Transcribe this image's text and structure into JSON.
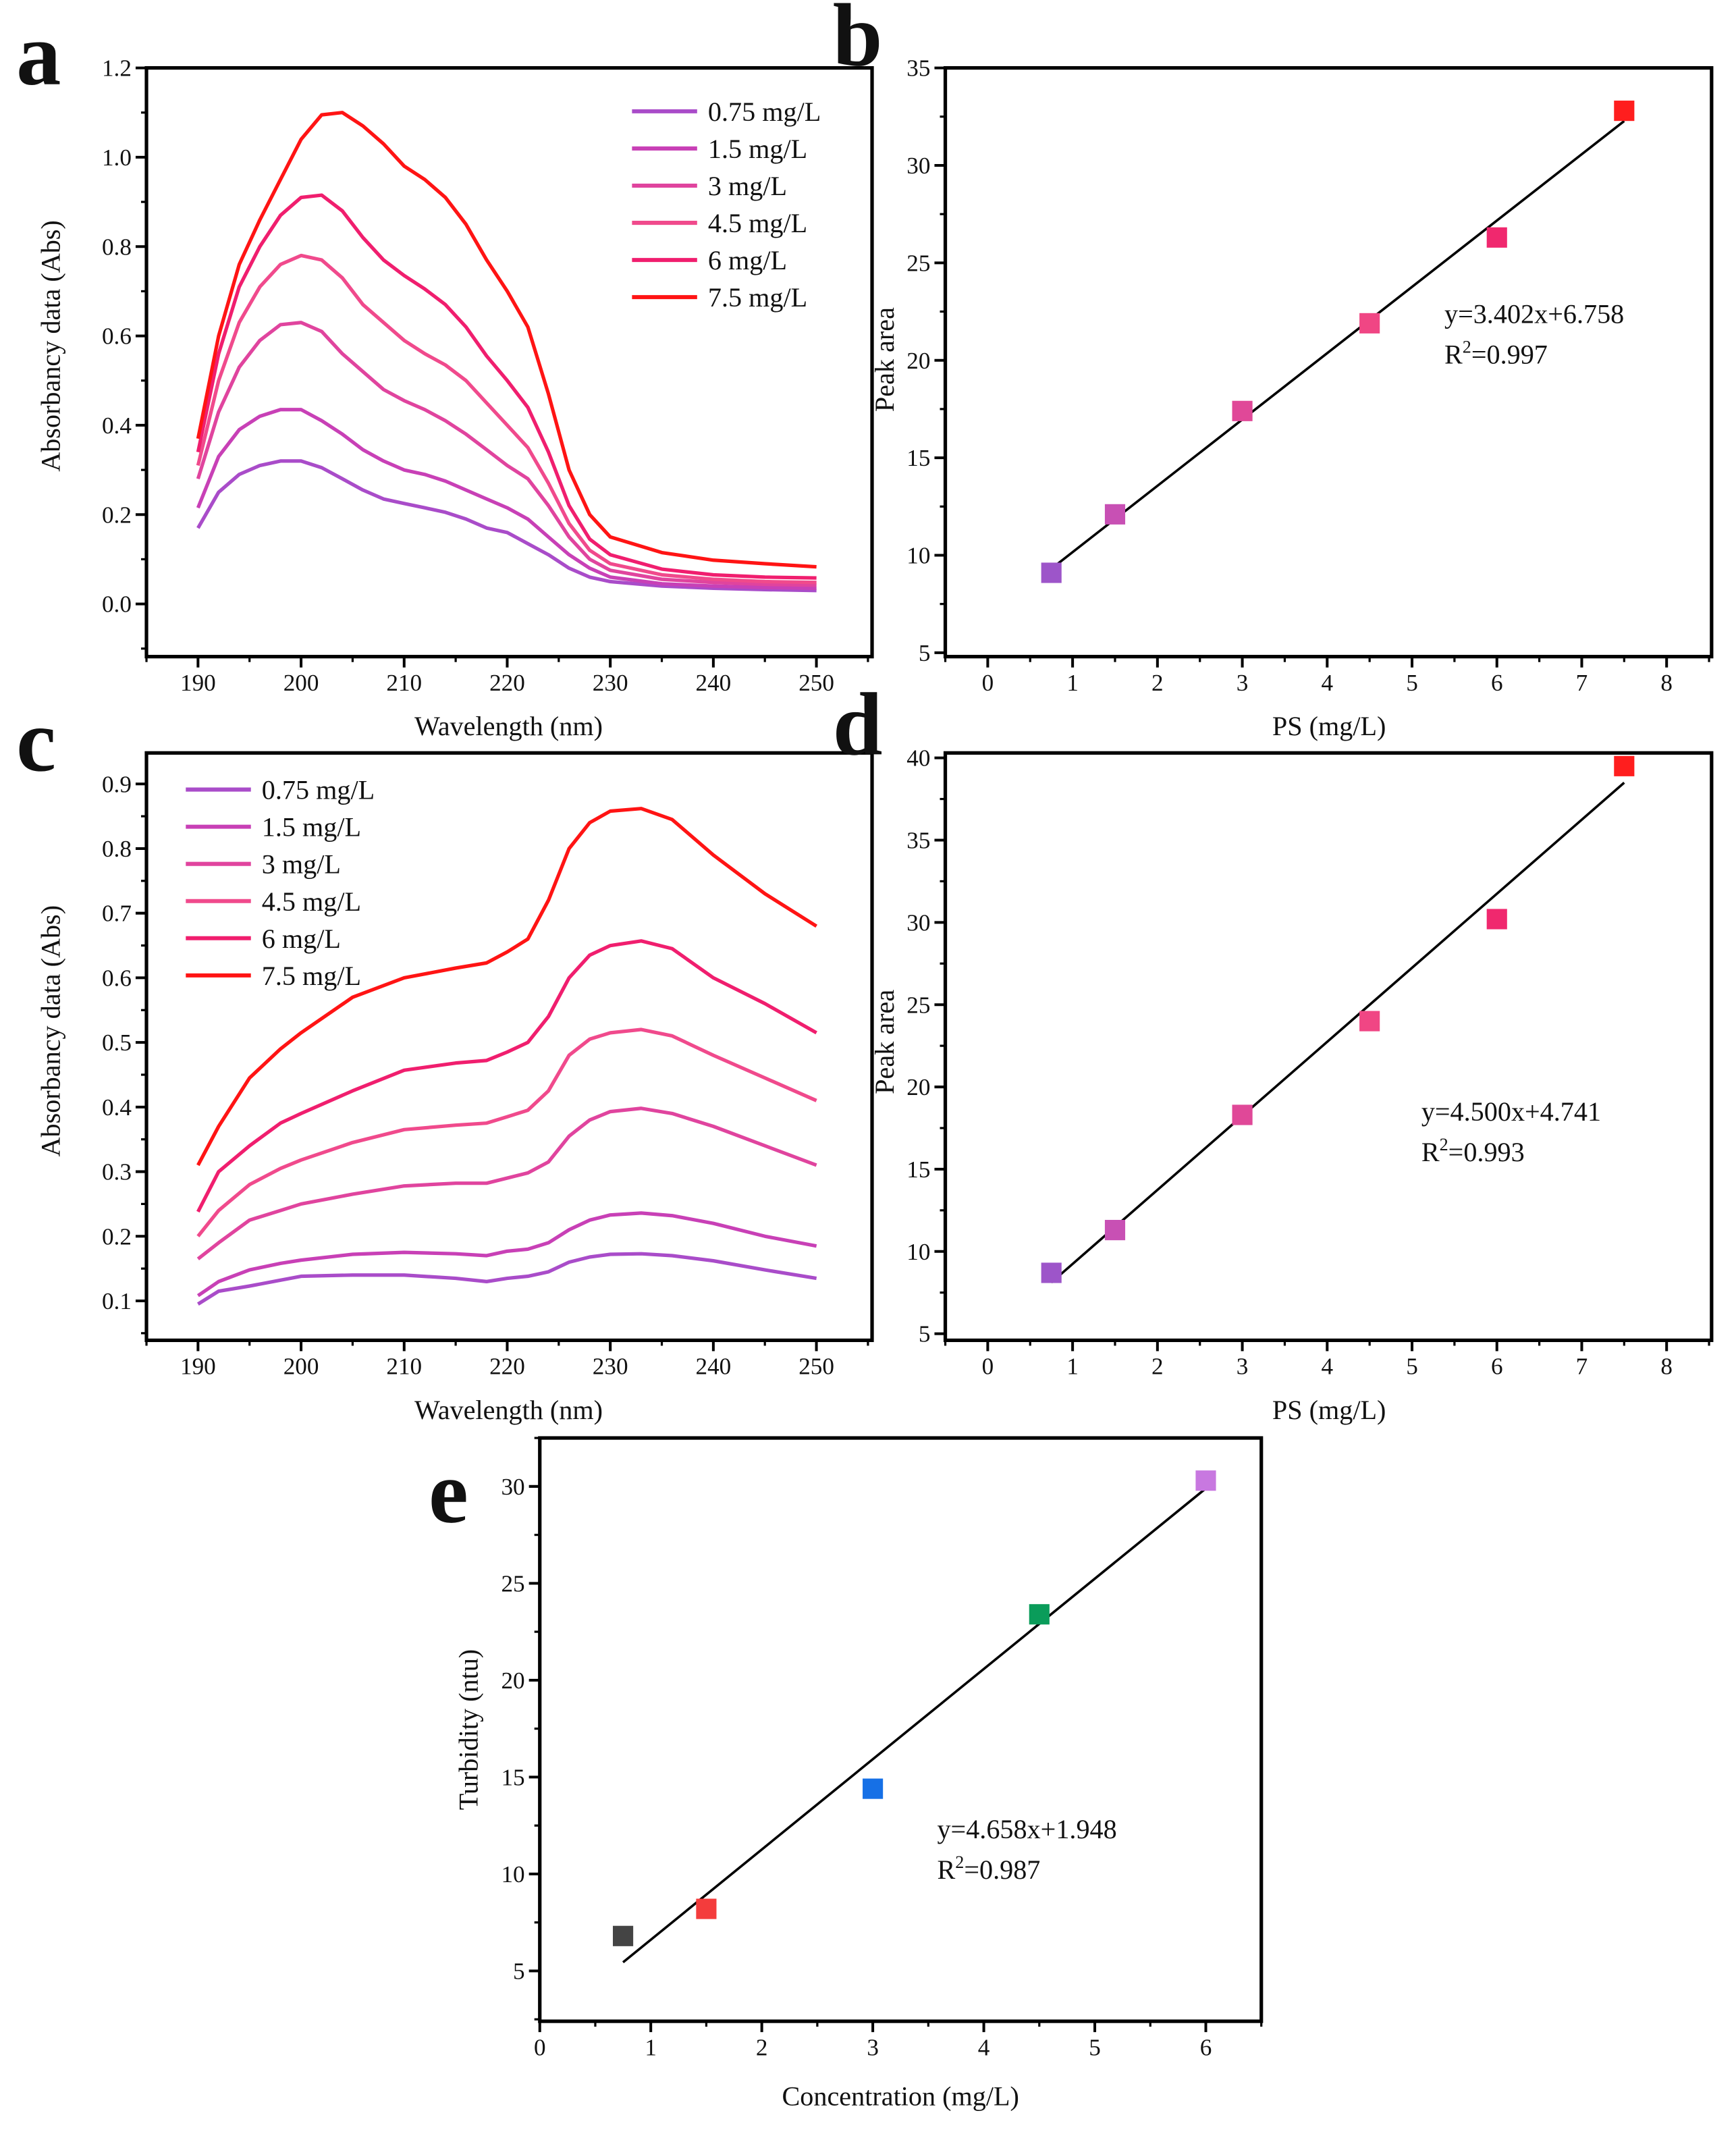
{
  "chart_data": [
    {
      "panel": "a",
      "type": "line",
      "xlabel": "Wavelength (nm)",
      "ylabel": "Absorbancy data (Abs)",
      "xlim": [
        185,
        255.4
      ],
      "ylim": [
        -0.118,
        1.2
      ],
      "xticks": [
        190,
        200,
        210,
        220,
        230,
        240,
        250
      ],
      "xtick_labels": [
        "190",
        "200",
        "210",
        "220",
        "230",
        "240",
        "250"
      ],
      "xminor": 5,
      "yticks": [
        0,
        0.2,
        0.4,
        0.6,
        0.8,
        1.0,
        1.2
      ],
      "ytick_labels": [
        "0.0",
        "0.2",
        "0.4",
        "0.6",
        "0.8",
        "1.0",
        "1.2"
      ],
      "yminor": 0.1,
      "legend_position": "top-right",
      "x": [
        190,
        192,
        194,
        196,
        198,
        200,
        202,
        204,
        206,
        208,
        210,
        212,
        214,
        216,
        218,
        220,
        222,
        224,
        226,
        228,
        230,
        235,
        240,
        245,
        250
      ],
      "series": [
        {
          "name": "0.75 mg/L",
          "color": "#a94cc9",
          "values": [
            0.17,
            0.25,
            0.29,
            0.31,
            0.32,
            0.32,
            0.305,
            0.28,
            0.255,
            0.235,
            0.225,
            0.215,
            0.205,
            0.19,
            0.17,
            0.16,
            0.135,
            0.11,
            0.08,
            0.06,
            0.05,
            0.04,
            0.035,
            0.032,
            0.03
          ]
        },
        {
          "name": "1.5 mg/L",
          "color": "#c840b6",
          "values": [
            0.215,
            0.33,
            0.39,
            0.42,
            0.435,
            0.435,
            0.41,
            0.38,
            0.345,
            0.32,
            0.3,
            0.29,
            0.275,
            0.255,
            0.235,
            0.215,
            0.19,
            0.15,
            0.11,
            0.08,
            0.06,
            0.045,
            0.04,
            0.037,
            0.035
          ]
        },
        {
          "name": "3 mg/L",
          "color": "#e0449e",
          "values": [
            0.28,
            0.43,
            0.53,
            0.59,
            0.625,
            0.63,
            0.61,
            0.56,
            0.52,
            0.48,
            0.455,
            0.435,
            0.41,
            0.38,
            0.345,
            0.31,
            0.28,
            0.22,
            0.15,
            0.1,
            0.075,
            0.055,
            0.048,
            0.044,
            0.042
          ]
        },
        {
          "name": "4.5 mg/L",
          "color": "#f04a8c",
          "values": [
            0.31,
            0.5,
            0.63,
            0.71,
            0.76,
            0.78,
            0.77,
            0.73,
            0.67,
            0.63,
            0.59,
            0.56,
            0.535,
            0.5,
            0.45,
            0.4,
            0.35,
            0.27,
            0.18,
            0.12,
            0.09,
            0.065,
            0.055,
            0.05,
            0.048
          ]
        },
        {
          "name": "6 mg/L",
          "color": "#f01e6e",
          "values": [
            0.34,
            0.56,
            0.71,
            0.8,
            0.87,
            0.91,
            0.915,
            0.88,
            0.82,
            0.77,
            0.735,
            0.705,
            0.67,
            0.62,
            0.555,
            0.5,
            0.44,
            0.34,
            0.22,
            0.145,
            0.11,
            0.078,
            0.065,
            0.06,
            0.058
          ]
        },
        {
          "name": "7.5 mg/L",
          "color": "#ff1414",
          "values": [
            0.37,
            0.6,
            0.76,
            0.86,
            0.95,
            1.04,
            1.095,
            1.1,
            1.07,
            1.03,
            0.98,
            0.95,
            0.91,
            0.85,
            0.77,
            0.7,
            0.62,
            0.47,
            0.3,
            0.2,
            0.15,
            0.115,
            0.098,
            0.09,
            0.083
          ]
        }
      ]
    },
    {
      "panel": "b",
      "type": "scatter",
      "xlabel": "PS (mg/L)",
      "ylabel": "Peak area",
      "xlim": [
        -0.5,
        8.53
      ],
      "ylim": [
        4.8,
        35
      ],
      "xticks": [
        0,
        1,
        2,
        3,
        4,
        5,
        6,
        7,
        8
      ],
      "xtick_labels": [
        "0",
        "1",
        "2",
        "3",
        "4",
        "5",
        "6",
        "7",
        "8"
      ],
      "xminor": 0.5,
      "yticks": [
        5,
        10,
        15,
        20,
        25,
        30,
        35
      ],
      "ytick_labels": [
        "5",
        "10",
        "15",
        "20",
        "25",
        "30",
        "35"
      ],
      "yminor": 2.5,
      "points": [
        {
          "x": 0.75,
          "y": 9.1,
          "color": "#9d55c9"
        },
        {
          "x": 1.5,
          "y": 12.1,
          "color": "#c850b4"
        },
        {
          "x": 3,
          "y": 17.4,
          "color": "#e04898"
        },
        {
          "x": 4.5,
          "y": 21.9,
          "color": "#f04684"
        },
        {
          "x": 6,
          "y": 26.3,
          "color": "#f0286e"
        },
        {
          "x": 7.5,
          "y": 32.8,
          "color": "#ff1e1e"
        }
      ],
      "fit": {
        "slope": 3.402,
        "intercept": 6.758,
        "x_range": [
          0.75,
          7.5
        ],
        "equation": "y=3.402x+6.758",
        "r2_label": "R",
        "r2_sup": "2",
        "r2_value": "=0.997"
      }
    },
    {
      "panel": "c",
      "type": "line",
      "xlabel": "Wavelength (nm)",
      "ylabel": "Absorbancy data (Abs)",
      "xlim": [
        185,
        255.4
      ],
      "ylim": [
        0.039,
        0.948
      ],
      "xticks": [
        190,
        200,
        210,
        220,
        230,
        240,
        250
      ],
      "xtick_labels": [
        "190",
        "200",
        "210",
        "220",
        "230",
        "240",
        "250"
      ],
      "xminor": 5,
      "yticks": [
        0.1,
        0.2,
        0.3,
        0.4,
        0.5,
        0.6,
        0.7,
        0.8,
        0.9
      ],
      "ytick_labels": [
        "0.1",
        "0.2",
        "0.3",
        "0.4",
        "0.5",
        "0.6",
        "0.7",
        "0.8",
        "0.9"
      ],
      "yminor": 0.05,
      "legend_position": "top-left",
      "x": [
        190,
        192,
        195,
        198,
        200,
        205,
        210,
        215,
        218,
        220,
        222,
        224,
        226,
        228,
        230,
        233,
        236,
        240,
        245,
        250
      ],
      "series": [
        {
          "name": "0.75 mg/L",
          "color": "#a94cc9",
          "values": [
            0.095,
            0.115,
            0.123,
            0.132,
            0.138,
            0.14,
            0.14,
            0.135,
            0.13,
            0.135,
            0.138,
            0.145,
            0.16,
            0.168,
            0.172,
            0.173,
            0.17,
            0.162,
            0.148,
            0.135
          ]
        },
        {
          "name": "1.5 mg/L",
          "color": "#c840b6",
          "values": [
            0.108,
            0.13,
            0.148,
            0.158,
            0.163,
            0.172,
            0.175,
            0.173,
            0.17,
            0.177,
            0.18,
            0.19,
            0.21,
            0.225,
            0.233,
            0.236,
            0.232,
            0.22,
            0.2,
            0.185
          ]
        },
        {
          "name": "3 mg/L",
          "color": "#e0449e",
          "values": [
            0.165,
            0.19,
            0.225,
            0.24,
            0.25,
            0.265,
            0.278,
            0.282,
            0.282,
            0.29,
            0.298,
            0.315,
            0.355,
            0.38,
            0.393,
            0.398,
            0.39,
            0.37,
            0.34,
            0.31
          ]
        },
        {
          "name": "4.5 mg/L",
          "color": "#f04a8c",
          "values": [
            0.2,
            0.24,
            0.28,
            0.305,
            0.318,
            0.345,
            0.365,
            0.372,
            0.375,
            0.385,
            0.395,
            0.425,
            0.48,
            0.505,
            0.515,
            0.52,
            0.51,
            0.48,
            0.445,
            0.41
          ]
        },
        {
          "name": "6 mg/L",
          "color": "#f01e6e",
          "values": [
            0.238,
            0.3,
            0.34,
            0.375,
            0.39,
            0.425,
            0.457,
            0.468,
            0.472,
            0.485,
            0.5,
            0.54,
            0.6,
            0.635,
            0.65,
            0.657,
            0.645,
            0.6,
            0.56,
            0.515
          ]
        },
        {
          "name": "7.5 mg/L",
          "color": "#ff1414",
          "values": [
            0.31,
            0.37,
            0.445,
            0.49,
            0.515,
            0.57,
            0.6,
            0.615,
            0.623,
            0.64,
            0.66,
            0.72,
            0.8,
            0.84,
            0.858,
            0.862,
            0.845,
            0.79,
            0.73,
            0.68
          ]
        }
      ]
    },
    {
      "panel": "d",
      "type": "scatter",
      "xlabel": "PS (mg/L)",
      "ylabel": "Peak area",
      "xlim": [
        -0.5,
        8.53
      ],
      "ylim": [
        4.6,
        40.3
      ],
      "xticks": [
        0,
        1,
        2,
        3,
        4,
        5,
        6,
        7,
        8
      ],
      "xtick_labels": [
        "0",
        "1",
        "2",
        "3",
        "4",
        "5",
        "6",
        "7",
        "8"
      ],
      "xminor": 0.5,
      "yticks": [
        5,
        10,
        15,
        20,
        25,
        30,
        35,
        40
      ],
      "ytick_labels": [
        "5",
        "10",
        "15",
        "20",
        "25",
        "30",
        "35",
        "40"
      ],
      "yminor": 2.5,
      "points": [
        {
          "x": 0.75,
          "y": 8.7,
          "color": "#9d55c9"
        },
        {
          "x": 1.5,
          "y": 11.3,
          "color": "#c850b4"
        },
        {
          "x": 3,
          "y": 18.3,
          "color": "#e04898"
        },
        {
          "x": 4.5,
          "y": 24.0,
          "color": "#f04684"
        },
        {
          "x": 6,
          "y": 30.2,
          "color": "#f0286e"
        },
        {
          "x": 7.5,
          "y": 39.5,
          "color": "#ff1e1e"
        }
      ],
      "fit": {
        "slope": 4.5,
        "intercept": 4.741,
        "x_range": [
          0.75,
          7.5
        ],
        "equation": "y=4.500x+4.741",
        "r2_label": "R",
        "r2_sup": "2",
        "r2_value": "=0.993"
      }
    },
    {
      "panel": "e",
      "type": "scatter",
      "xlabel": "Concentration (mg/L)",
      "ylabel": "Turbidity (ntu)",
      "xlim": [
        0,
        6.5
      ],
      "ylim": [
        2.4,
        32.5
      ],
      "xticks": [
        0,
        1,
        2,
        3,
        4,
        5,
        6
      ],
      "xtick_labels": [
        "0",
        "1",
        "2",
        "3",
        "4",
        "5",
        "6"
      ],
      "xminor": 0.5,
      "yticks": [
        5,
        10,
        15,
        20,
        25,
        30
      ],
      "ytick_labels": [
        "5",
        "10",
        "15",
        "20",
        "25",
        "30"
      ],
      "yminor": 2.5,
      "points": [
        {
          "x": 0.75,
          "y": 6.8,
          "color": "#444444"
        },
        {
          "x": 1.5,
          "y": 8.2,
          "color": "#f43c3c"
        },
        {
          "x": 3,
          "y": 14.4,
          "color": "#1670e6"
        },
        {
          "x": 4.5,
          "y": 23.4,
          "color": "#0a9c5a"
        },
        {
          "x": 6,
          "y": 30.3,
          "color": "#c878e0"
        }
      ],
      "fit": {
        "slope": 4.658,
        "intercept": 1.948,
        "x_range": [
          0.75,
          6
        ],
        "equation": "y=4.658x+1.948",
        "r2_label": "R",
        "r2_sup": "2",
        "r2_value": "=0.987"
      }
    }
  ]
}
